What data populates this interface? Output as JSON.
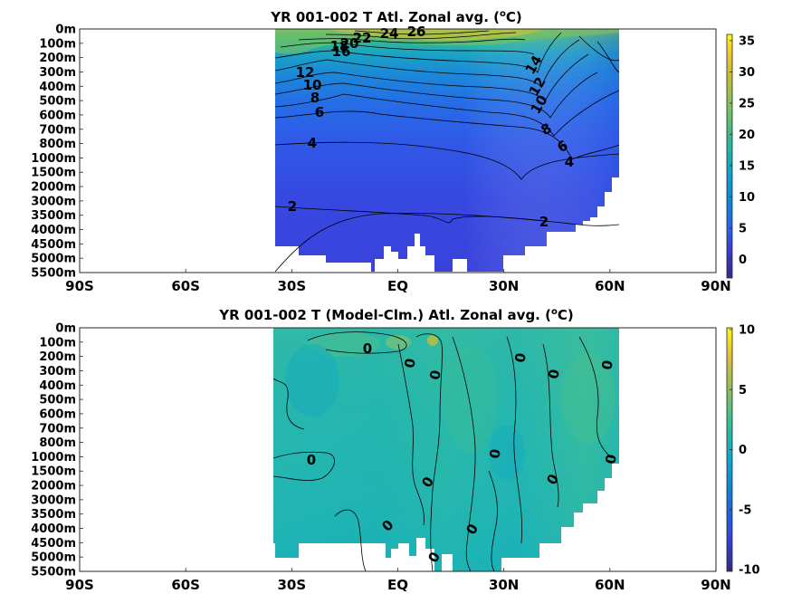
{
  "chart_data": [
    {
      "type": "heatmap",
      "title": "YR 001-002 T Atl. Zonal avg. (°C)",
      "title_main": "YR 001-002 T Atl. Zonal avg. (",
      "title_unit": "C)",
      "title_sup": "o",
      "x_ticks": [
        "90S",
        "60S",
        "30S",
        "EQ",
        "30N",
        "60N",
        "90N"
      ],
      "x_values": [
        -90,
        -60,
        -30,
        0,
        30,
        60,
        90
      ],
      "xlim": [
        -90,
        90
      ],
      "y_ticks": [
        "0m",
        "100m",
        "200m",
        "300m",
        "400m",
        "500m",
        "600m",
        "700m",
        "800m",
        "1000m",
        "1500m",
        "2000m",
        "3000m",
        "3500m",
        "4000m",
        "4500m",
        "5000m",
        "5500m"
      ],
      "data_x_range": [
        -35,
        64
      ],
      "colorbar": {
        "ticks": [
          35,
          30,
          25,
          20,
          15,
          10,
          5,
          0
        ],
        "range": [
          -3,
          36
        ],
        "colormap": "parula"
      },
      "contour_labels": [
        "26",
        "24",
        "22",
        "20",
        "18",
        "16",
        "14",
        "12",
        "10",
        "8",
        "6",
        "4",
        "2",
        "14",
        "12",
        "10",
        "8",
        "6",
        "4",
        "2"
      ],
      "contour_levels": [
        2,
        4,
        6,
        8,
        10,
        12,
        14,
        16,
        18,
        20,
        22,
        24,
        26
      ]
    },
    {
      "type": "heatmap",
      "title": "YR 001-002 T (Model-Clm.) Atl. Zonal avg. (°C)",
      "title_main": "YR 001-002 T (Model-Clm.) Atl. Zonal avg. (",
      "title_unit": "C)",
      "title_sup": "o",
      "x_ticks": [
        "90S",
        "60S",
        "30S",
        "EQ",
        "30N",
        "60N",
        "90N"
      ],
      "x_values": [
        -90,
        -60,
        -30,
        0,
        30,
        60,
        90
      ],
      "xlim": [
        -90,
        90
      ],
      "y_ticks": [
        "0m",
        "100m",
        "200m",
        "300m",
        "400m",
        "500m",
        "600m",
        "700m",
        "800m",
        "1000m",
        "1500m",
        "2000m",
        "3000m",
        "3500m",
        "4000m",
        "4500m",
        "5000m",
        "5500m"
      ],
      "data_x_range": [
        -35,
        64
      ],
      "colorbar": {
        "ticks": [
          10,
          5,
          0,
          -5,
          -10
        ],
        "range": [
          -10,
          10
        ],
        "colormap": "parula"
      },
      "contour_labels": [
        "0",
        "0",
        "0",
        "0",
        "0",
        "0",
        "0",
        "0",
        "0",
        "0",
        "0",
        "0",
        "0",
        "0"
      ],
      "contour_levels": [
        0
      ]
    }
  ]
}
